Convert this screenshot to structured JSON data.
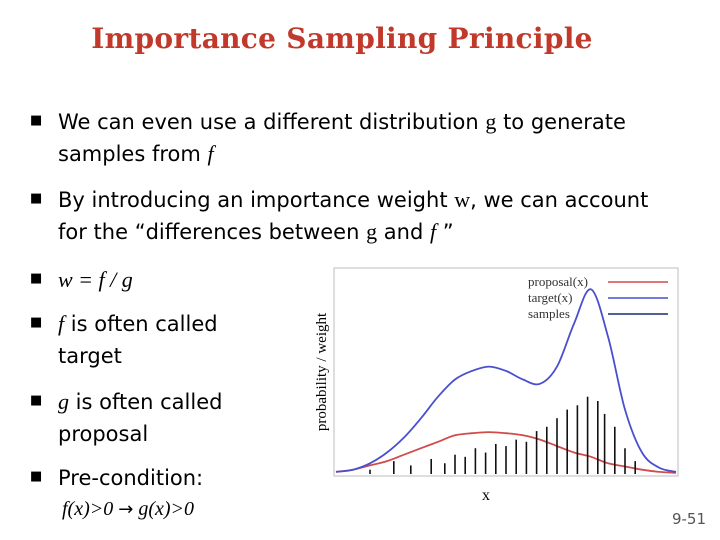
{
  "slide": {
    "title": "Importance Sampling Principle",
    "bullets": [
      {
        "before": "We can even use a different distribution ",
        "var": "g",
        "after": " to generate samples from ",
        "var2": "f"
      },
      {
        "text1": "By introducing an importance weight ",
        "var_w": "w",
        "text2": ", we can account for the “differences between ",
        "var_g": "g",
        "text3": " and ",
        "var_f": "f",
        "text4": " ”"
      },
      {
        "formula": "w = f / g"
      },
      {
        "var": "f",
        "text": " is often called",
        "line2": "target"
      },
      {
        "var": "g",
        "text": " is often called",
        "line2": "proposal"
      },
      {
        "text": "Pre-condition:",
        "line2a": "f(x)>0 ",
        "arrow": "→",
        "line2b": " g(x)>0"
      }
    ],
    "slide_number": "9-51"
  },
  "chart_data": {
    "type": "line",
    "xlabel": "x",
    "ylabel": "probability / weight",
    "legend_position": "top-right",
    "legend": [
      {
        "name": "proposal(x)",
        "color": "#d24b4b"
      },
      {
        "name": "target(x)",
        "color": "#4a4fcf"
      },
      {
        "name": "samples",
        "color": "#1f2a6e"
      }
    ],
    "x": [
      0.0,
      0.05,
      0.1,
      0.15,
      0.2,
      0.25,
      0.3,
      0.35,
      0.4,
      0.45,
      0.5,
      0.55,
      0.6,
      0.65,
      0.7,
      0.75,
      0.8,
      0.85,
      0.9,
      0.95,
      1.0
    ],
    "series": [
      {
        "name": "proposal(x)",
        "color": "#d24b4b",
        "values": [
          0.01,
          0.02,
          0.04,
          0.06,
          0.09,
          0.12,
          0.15,
          0.18,
          0.19,
          0.195,
          0.19,
          0.18,
          0.16,
          0.13,
          0.1,
          0.08,
          0.05,
          0.035,
          0.02,
          0.01,
          0.005
        ]
      },
      {
        "name": "target(x)",
        "color": "#4a4fcf",
        "values": [
          0.01,
          0.02,
          0.05,
          0.1,
          0.17,
          0.26,
          0.36,
          0.44,
          0.48,
          0.5,
          0.48,
          0.44,
          0.42,
          0.5,
          0.7,
          0.86,
          0.64,
          0.3,
          0.1,
          0.03,
          0.01
        ]
      }
    ],
    "samples": [
      {
        "x": 0.1,
        "w": 0.02
      },
      {
        "x": 0.17,
        "w": 0.06
      },
      {
        "x": 0.22,
        "w": 0.04
      },
      {
        "x": 0.28,
        "w": 0.07
      },
      {
        "x": 0.32,
        "w": 0.05
      },
      {
        "x": 0.35,
        "w": 0.09
      },
      {
        "x": 0.38,
        "w": 0.08
      },
      {
        "x": 0.41,
        "w": 0.12
      },
      {
        "x": 0.44,
        "w": 0.1
      },
      {
        "x": 0.47,
        "w": 0.14
      },
      {
        "x": 0.5,
        "w": 0.13
      },
      {
        "x": 0.53,
        "w": 0.16
      },
      {
        "x": 0.56,
        "w": 0.15
      },
      {
        "x": 0.59,
        "w": 0.2
      },
      {
        "x": 0.62,
        "w": 0.22
      },
      {
        "x": 0.65,
        "w": 0.26
      },
      {
        "x": 0.68,
        "w": 0.3
      },
      {
        "x": 0.71,
        "w": 0.32
      },
      {
        "x": 0.74,
        "w": 0.36
      },
      {
        "x": 0.77,
        "w": 0.34
      },
      {
        "x": 0.79,
        "w": 0.28
      },
      {
        "x": 0.82,
        "w": 0.22
      },
      {
        "x": 0.85,
        "w": 0.12
      },
      {
        "x": 0.88,
        "w": 0.06
      }
    ],
    "xlim": [
      0,
      1
    ],
    "ylim": [
      0,
      0.95
    ],
    "grid": false
  }
}
